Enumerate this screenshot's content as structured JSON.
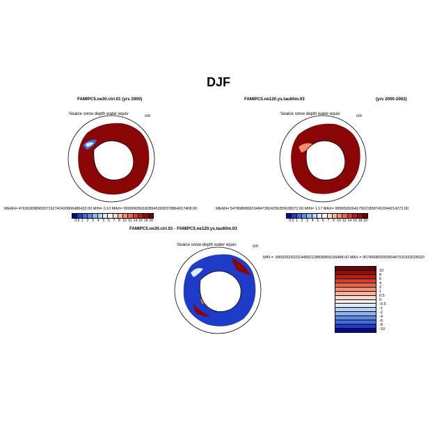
{
  "figure": {
    "title": "DJF",
    "variable_label": "Seaice snow depth water equiv",
    "units": "cm"
  },
  "panel_a": {
    "case": "FAMIPC5.ne30.ctrl.01 (yrs 2000)",
    "stats": "MEAN= 47636309896557152742420806486432.00   MIN=     0.10   MAX= 99999935618289453990378864017408.00"
  },
  "panel_b": {
    "case": "FAMIPC5.ne120.ys.tau60m.03",
    "years": "(yrs 2000-2002)",
    "stats": "MEAN= 54780868062348473824256355638272.00   MIN=     1.17   MAX= 99995902641750218587452044214272.00"
  },
  "panel_c": {
    "case": "FAMIPC5.ne30.ctrl.01 - FAMIPC5.ne120.ys.tau60m.03",
    "stats": "MIN = -99592624331144892128836859199488.00  MAX = 90740086095995487031933028920"
  },
  "colorbar_abs": {
    "ticks": [
      "0.5",
      "1",
      "2",
      "3",
      "4",
      "5",
      "6",
      "7",
      "8",
      "10",
      "12",
      "14",
      "16",
      "18",
      "20"
    ],
    "colors": [
      "#08088a",
      "#1e3cc8",
      "#3c6edc",
      "#5a8ce6",
      "#8cb4f0",
      "#b4d2f5",
      "#dcebfa",
      "#fff5f0",
      "#fcdcc8",
      "#fab49b",
      "#f58c6e",
      "#eb6446",
      "#d73c28",
      "#b91e14",
      "#960a0a",
      "#6e0000"
    ]
  },
  "colorbar_diff": {
    "ticks": [
      "10",
      "8",
      "6",
      "4",
      "2",
      "1",
      "0.5",
      "0",
      "-0.5",
      "-1",
      "-2",
      "-4",
      "-6",
      "-8",
      "-10"
    ],
    "colors": [
      "#6e0000",
      "#960a0a",
      "#b91e14",
      "#d73c28",
      "#eb6446",
      "#f58c6e",
      "#fab49b",
      "#fcdcc8",
      "#fff5f0",
      "#dcebfa",
      "#b4d2f5",
      "#8cb4f0",
      "#5a8ce6",
      "#3c6edc",
      "#1e3cc8",
      "#08088a"
    ]
  },
  "chart_data": [
    {
      "type": "heatmap",
      "title": "Seaice snow depth water equiv",
      "subtitle": "FAMIPC5.ne30.ctrl.01 (yrs 2000)",
      "projection": "south-polar stereographic",
      "units": "cm",
      "levels": [
        0.5,
        1,
        2,
        3,
        4,
        5,
        6,
        7,
        8,
        10,
        12,
        14,
        16,
        18,
        20
      ],
      "min": 0.1,
      "note": "mostly > 20 cm (dark red) around Antarctic sea ice; low values (blue) in Weddell Sea sector"
    },
    {
      "type": "heatmap",
      "title": "Seaice snow depth water equiv",
      "subtitle": "FAMIPC5.ne120.ys.tau60m.03 (yrs 2000-2002)",
      "projection": "south-polar stereographic",
      "units": "cm",
      "levels": [
        0.5,
        1,
        2,
        3,
        4,
        5,
        6,
        7,
        8,
        10,
        12,
        14,
        16,
        18,
        20
      ],
      "min": 1.17,
      "note": "mostly > 20 cm (dark red); lighter values near coast"
    },
    {
      "type": "heatmap",
      "title": "Seaice snow depth water equiv",
      "subtitle": "FAMIPC5.ne30.ctrl.01 - FAMIPC5.ne120.ys.tau60m.03",
      "projection": "south-polar stereographic",
      "units": "cm",
      "levels": [
        -10,
        -8,
        -6,
        -4,
        -2,
        -1,
        -0.5,
        0,
        0.5,
        1,
        2,
        4,
        6,
        8,
        10
      ],
      "note": "mixed negative (blue) and positive (red) differences"
    }
  ]
}
